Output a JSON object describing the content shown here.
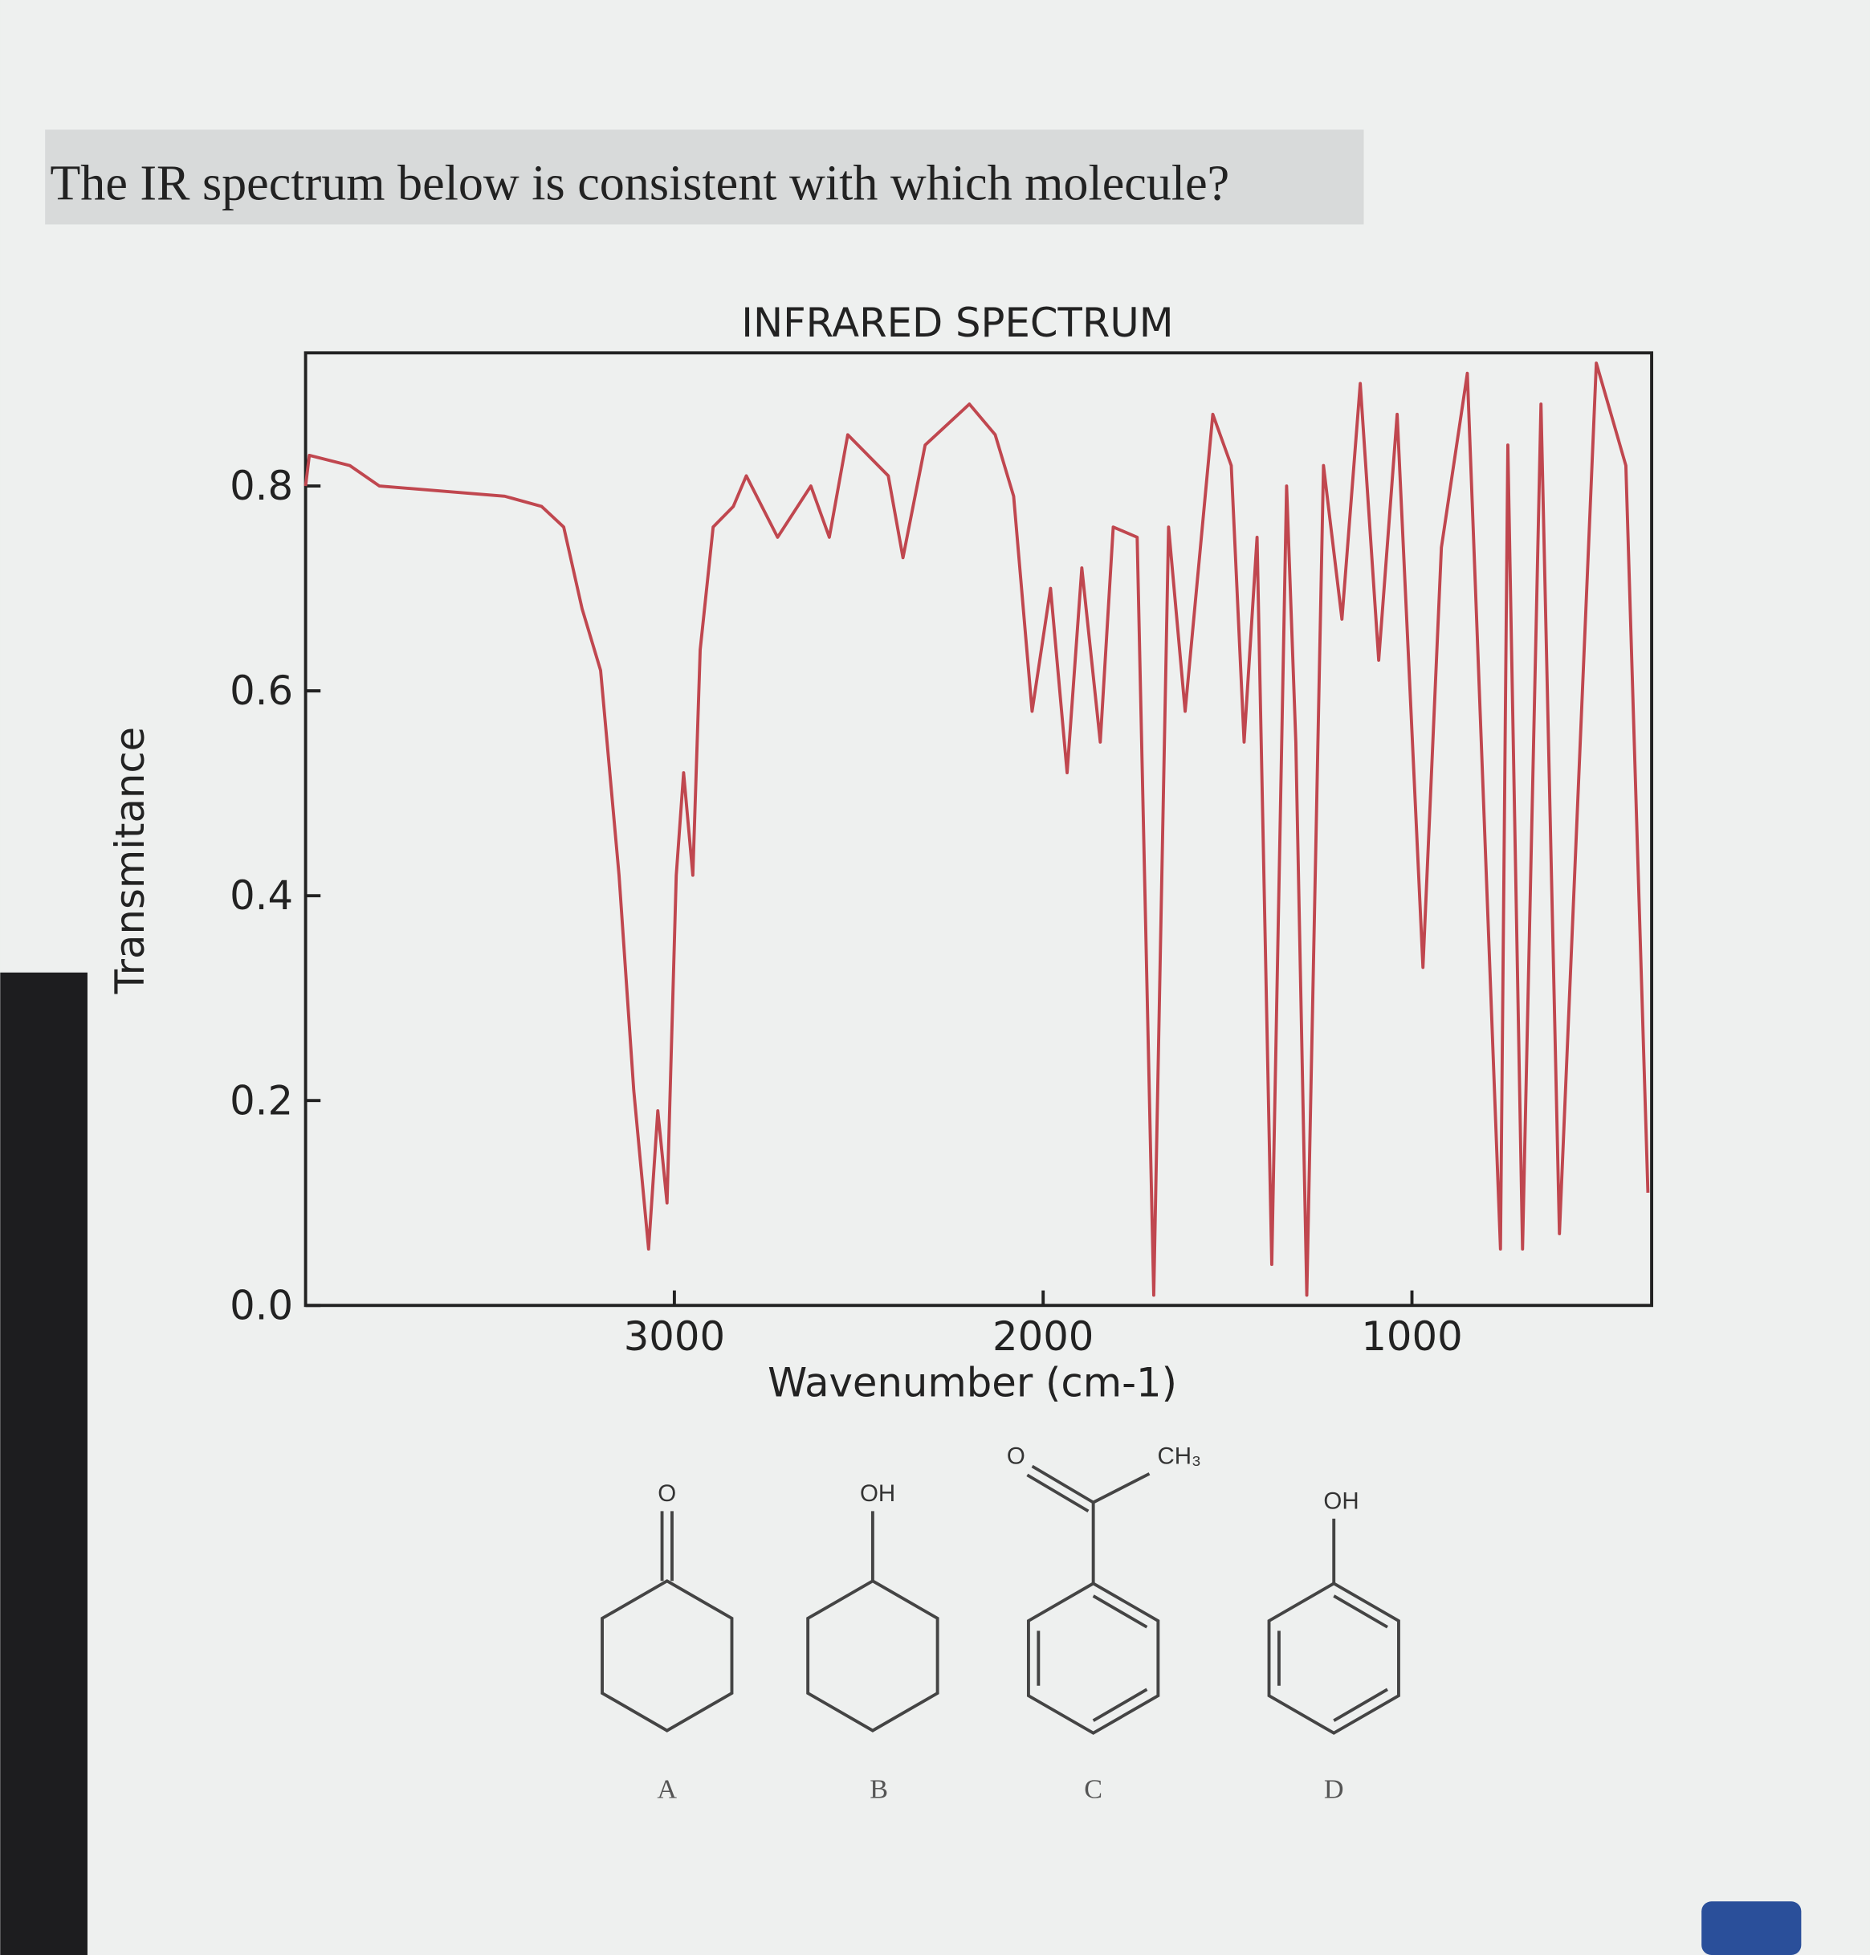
{
  "question": "The IR spectrum below is consistent with which molecule?",
  "chart_data": {
    "type": "line",
    "title": "INFRARED SPECTRUM",
    "x_label": "Wavenumber (cm-1)",
    "y_label": "Transmitance",
    "color": "#c0474f",
    "x": [
      4000,
      3990,
      3880,
      3800,
      3460,
      3360,
      3300,
      3250,
      3200,
      3150,
      3110,
      3070,
      3045,
      3020,
      2995,
      2975,
      2950,
      2930,
      2895,
      2840,
      2805,
      2720,
      2630,
      2580,
      2530,
      2420,
      2380,
      2320,
      2200,
      2130,
      2080,
      2030,
      1980,
      1935,
      1895,
      1845,
      1810,
      1745,
      1700,
      1660,
      1615,
      1540,
      1490,
      1455,
      1420,
      1380,
      1340,
      1315,
      1285,
      1240,
      1190,
      1140,
      1090,
      1040,
      970,
      920,
      850,
      760,
      740,
      700,
      650,
      600,
      500,
      420,
      360
    ],
    "values": [
      0.8,
      0.83,
      0.82,
      0.8,
      0.79,
      0.78,
      0.76,
      0.68,
      0.62,
      0.42,
      0.21,
      0.055,
      0.19,
      0.1,
      0.42,
      0.52,
      0.42,
      0.64,
      0.76,
      0.78,
      0.81,
      0.75,
      0.8,
      0.75,
      0.85,
      0.81,
      0.73,
      0.84,
      0.88,
      0.85,
      0.79,
      0.58,
      0.7,
      0.52,
      0.72,
      0.55,
      0.76,
      0.75,
      0.01,
      0.76,
      0.58,
      0.87,
      0.82,
      0.55,
      0.75,
      0.04,
      0.8,
      0.55,
      0.01,
      0.82,
      0.67,
      0.9,
      0.63,
      0.87,
      0.33,
      0.74,
      0.91,
      0.055,
      0.84,
      0.055,
      0.88,
      0.07,
      0.92,
      0.82,
      0.11
    ],
    "xlim": [
      4000,
      350
    ],
    "xticks": [
      3000,
      2000,
      1000
    ],
    "ylim": [
      0,
      0.93
    ],
    "yticks": [
      {
        "value": 0,
        "label": "0.0"
      },
      0.2,
      0.4,
      0.6,
      0.8
    ]
  },
  "molecules": [
    {
      "label": "A",
      "atoms": [
        "O"
      ]
    },
    {
      "label": "B",
      "atoms": [
        "OH"
      ]
    },
    {
      "label": "C",
      "atoms": [
        "O",
        "CH₃"
      ]
    },
    {
      "label": "D",
      "atoms": [
        "OH"
      ]
    }
  ]
}
